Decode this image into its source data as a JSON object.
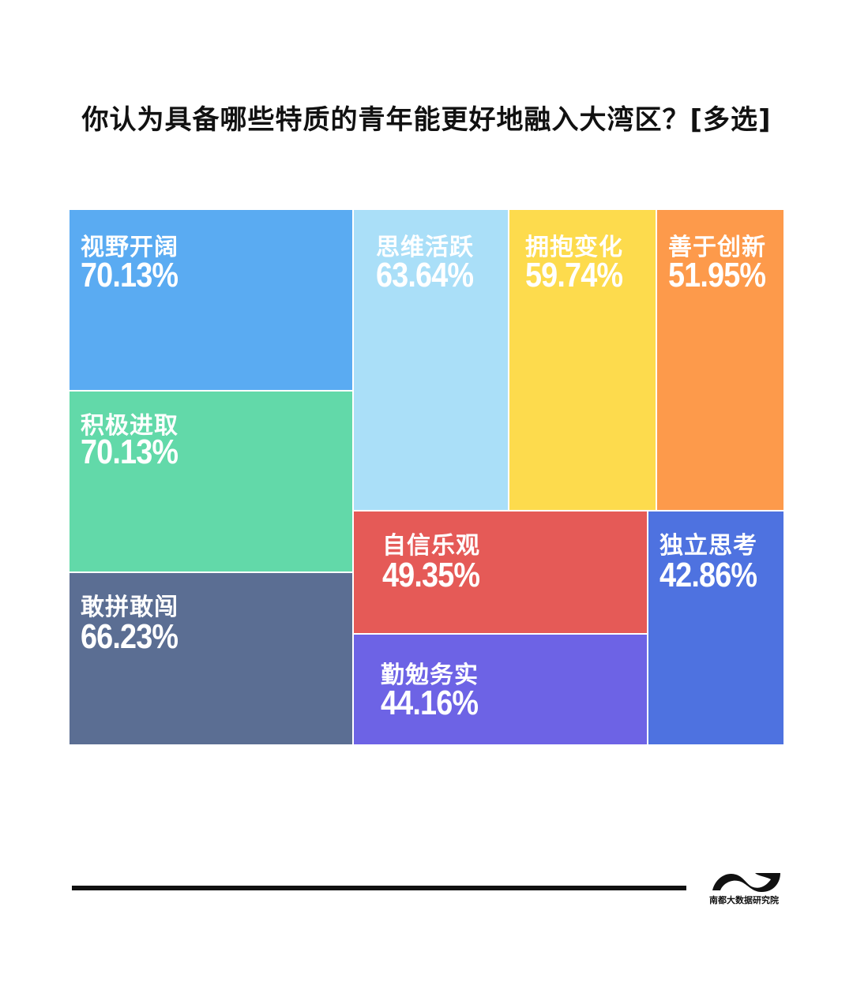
{
  "title": "你认为具备哪些特质的青年能更好地融入大湾区？[多选]",
  "chart_data": {
    "type": "treemap",
    "title": "你认为具备哪些特质的青年能更好地融入大湾区？[多选]",
    "unit": "%",
    "items": [
      {
        "label": "视野开阔",
        "value": 70.13,
        "text": "70.13%",
        "color": "#5aabf2"
      },
      {
        "label": "积极进取",
        "value": 70.13,
        "text": "70.13%",
        "color": "#62d9a9"
      },
      {
        "label": "敢拼敢闯",
        "value": 66.23,
        "text": "66.23%",
        "color": "#5b6e93"
      },
      {
        "label": "思维活跃",
        "value": 63.64,
        "text": "63.64%",
        "color": "#aadff8"
      },
      {
        "label": "拥抱变化",
        "value": 59.74,
        "text": "59.74%",
        "color": "#fddb4d"
      },
      {
        "label": "善于创新",
        "value": 51.95,
        "text": "51.95%",
        "color": "#fd9a4b"
      },
      {
        "label": "自信乐观",
        "value": 49.35,
        "text": "49.35%",
        "color": "#e55a57"
      },
      {
        "label": "独立思考",
        "value": 42.86,
        "text": "42.86%",
        "color": "#4e72e0"
      },
      {
        "label": "勤勉务实",
        "value": 44.16,
        "text": "44.16%",
        "color": "#6d63e5"
      }
    ]
  },
  "footer": {
    "brand": "南都大数据研究院"
  }
}
